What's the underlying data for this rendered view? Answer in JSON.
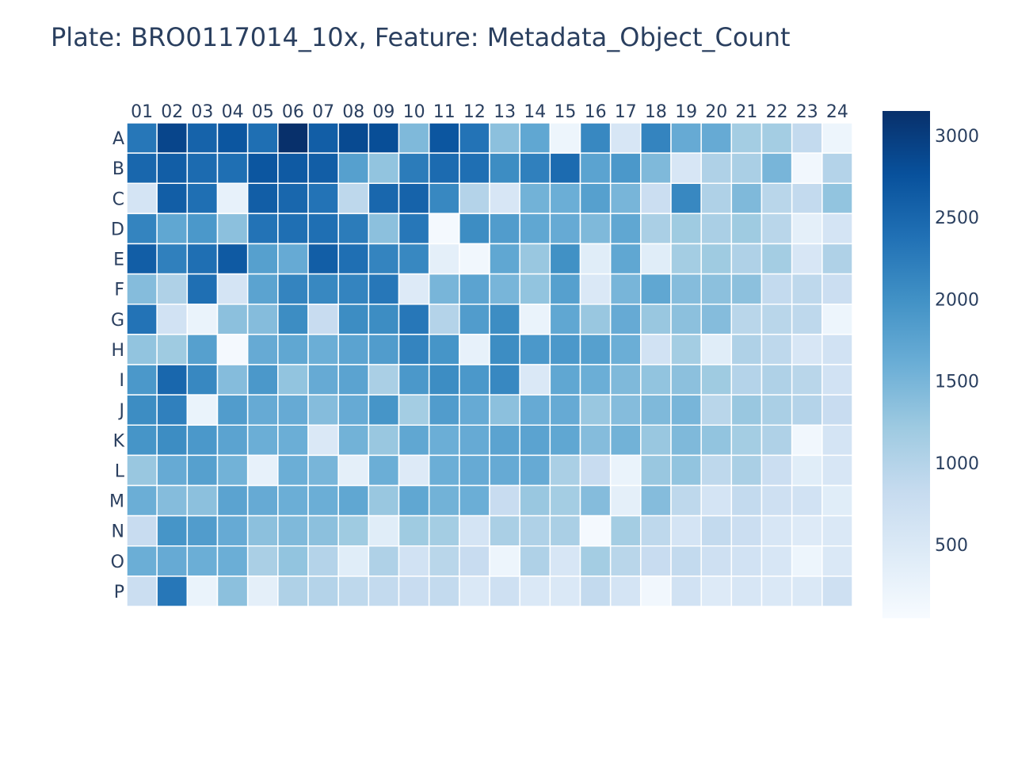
{
  "chart_data": {
    "type": "heatmap",
    "title": "Plate: BRO0117014_10x, Feature: Metadata_Object_Count",
    "columns": [
      "01",
      "02",
      "03",
      "04",
      "05",
      "06",
      "07",
      "08",
      "09",
      "10",
      "11",
      "12",
      "13",
      "14",
      "15",
      "16",
      "17",
      "18",
      "19",
      "20",
      "21",
      "22",
      "23",
      "24"
    ],
    "rows": [
      "A",
      "B",
      "C",
      "D",
      "E",
      "F",
      "G",
      "H",
      "I",
      "J",
      "K",
      "L",
      "M",
      "N",
      "O",
      "P"
    ],
    "values": [
      [
        2300,
        2900,
        2550,
        2700,
        2400,
        3150,
        2600,
        2850,
        2800,
        1450,
        2700,
        2350,
        1350,
        1700,
        200,
        2100,
        550,
        2150,
        1650,
        1650,
        1150,
        1150,
        850,
        200
      ],
      [
        2500,
        2600,
        2450,
        2400,
        2700,
        2650,
        2600,
        1800,
        1300,
        2250,
        2450,
        2400,
        2050,
        2200,
        2450,
        1750,
        1900,
        1450,
        550,
        1050,
        1100,
        1500,
        150,
        1000
      ],
      [
        600,
        2600,
        2400,
        300,
        2600,
        2500,
        2350,
        900,
        2500,
        2550,
        2100,
        1000,
        550,
        1550,
        1600,
        1800,
        1500,
        750,
        2100,
        1050,
        1450,
        950,
        850,
        1300
      ],
      [
        2150,
        1700,
        1900,
        1350,
        2350,
        2400,
        2400,
        2250,
        1350,
        2300,
        100,
        2050,
        1850,
        1700,
        1650,
        1450,
        1700,
        1100,
        1200,
        1100,
        1200,
        950,
        350,
        600
      ],
      [
        2600,
        2200,
        2400,
        2650,
        1800,
        1650,
        2600,
        2400,
        2150,
        2100,
        350,
        150,
        1700,
        1250,
        2000,
        400,
        1700,
        400,
        1150,
        1200,
        1050,
        1150,
        550,
        1050
      ],
      [
        1400,
        1050,
        2400,
        600,
        1750,
        2150,
        2100,
        2150,
        2300,
        450,
        1500,
        1750,
        1500,
        1300,
        1800,
        500,
        1500,
        1700,
        1400,
        1350,
        1350,
        850,
        900,
        750
      ],
      [
        2350,
        650,
        250,
        1350,
        1400,
        2050,
        800,
        2050,
        2050,
        2300,
        1000,
        1850,
        2050,
        250,
        1700,
        1250,
        1650,
        1250,
        1350,
        1400,
        950,
        950,
        900,
        200
      ],
      [
        1300,
        1200,
        1800,
        100,
        1650,
        1700,
        1600,
        1750,
        1850,
        2150,
        1950,
        300,
        2050,
        1900,
        1900,
        1800,
        1600,
        650,
        1150,
        400,
        1050,
        900,
        550,
        650
      ],
      [
        1900,
        2500,
        2100,
        1400,
        1900,
        1300,
        1650,
        1750,
        1100,
        1900,
        2050,
        1900,
        2100,
        500,
        1700,
        1600,
        1450,
        1300,
        1350,
        1200,
        1000,
        1050,
        950,
        650
      ],
      [
        2050,
        2200,
        250,
        1850,
        1650,
        1650,
        1400,
        1650,
        1950,
        1150,
        1850,
        1650,
        1350,
        1650,
        1650,
        1250,
        1400,
        1450,
        1500,
        950,
        1250,
        1100,
        1000,
        800
      ],
      [
        1950,
        2050,
        1900,
        1750,
        1600,
        1600,
        500,
        1550,
        1250,
        1700,
        1600,
        1650,
        1750,
        1750,
        1700,
        1400,
        1550,
        1250,
        1450,
        1300,
        1150,
        1050,
        150,
        600
      ],
      [
        1250,
        1650,
        1800,
        1550,
        300,
        1600,
        1500,
        350,
        1600,
        450,
        1600,
        1650,
        1650,
        1650,
        1100,
        800,
        250,
        1250,
        1300,
        900,
        1100,
        750,
        400,
        550
      ],
      [
        1600,
        1400,
        1350,
        1750,
        1650,
        1600,
        1600,
        1700,
        1250,
        1700,
        1550,
        1600,
        800,
        1250,
        1150,
        1400,
        350,
        1400,
        900,
        600,
        850,
        700,
        650,
        400
      ],
      [
        800,
        1950,
        1850,
        1650,
        1350,
        1450,
        1350,
        1200,
        400,
        1200,
        1150,
        600,
        1100,
        1050,
        1100,
        100,
        1150,
        900,
        600,
        850,
        750,
        550,
        450,
        500
      ],
      [
        1600,
        1650,
        1600,
        1600,
        1100,
        1300,
        1000,
        400,
        1050,
        650,
        950,
        800,
        200,
        1050,
        550,
        1150,
        950,
        800,
        850,
        700,
        650,
        550,
        200,
        500
      ],
      [
        750,
        2300,
        250,
        1350,
        350,
        1050,
        1000,
        900,
        850,
        800,
        850,
        500,
        700,
        500,
        500,
        850,
        600,
        150,
        650,
        450,
        550,
        500,
        500,
        700
      ]
    ],
    "zmin": 50,
    "zmax": 3150,
    "colorscale": [
      "#f7fbff",
      "#deebf7",
      "#c6dbef",
      "#9ecae1",
      "#6baed6",
      "#4292c6",
      "#2171b5",
      "#08519c",
      "#08306b"
    ],
    "colorbar_ticks": [
      500,
      1000,
      1500,
      2000,
      2500,
      3000
    ],
    "colorbar_tick_labels": [
      "500",
      "1000",
      "1500",
      "2000",
      "2500",
      "3000"
    ]
  }
}
